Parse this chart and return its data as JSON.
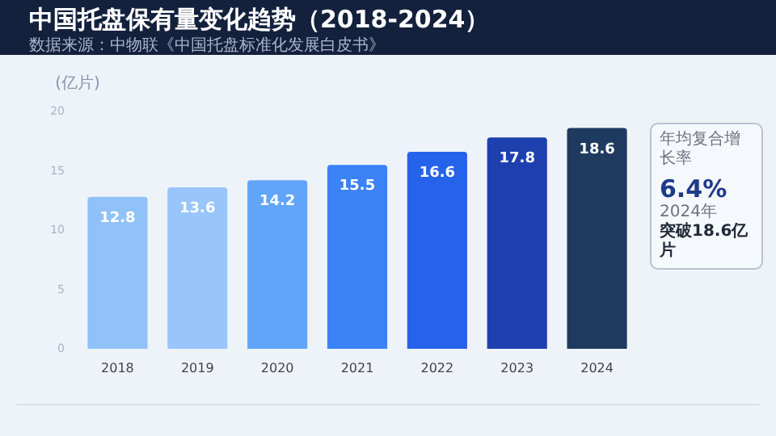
{
  "chart_data": {
    "type": "bar",
    "title": "中国托盘保有量变化趋势（2018-2024）",
    "subtitle": "数据来源：中物联《中国托盘标准化发展白皮书》",
    "ylabel": "(亿片)",
    "categories": [
      "2018",
      "2019",
      "2020",
      "2021",
      "2022",
      "2023",
      "2024"
    ],
    "values": [
      12.8,
      13.6,
      14.2,
      15.5,
      16.6,
      17.8,
      18.6
    ],
    "colors": [
      "#90c2f9",
      "#98c6fb",
      "#60a5fa",
      "#3b82f6",
      "#2563eb",
      "#1e40af",
      "#1e3a5f"
    ],
    "ylim": [
      0,
      20
    ],
    "yticks": [
      0,
      5,
      10,
      15,
      20
    ],
    "grid": false,
    "data_labels": true,
    "annotations": [
      "年均复合增长率",
      "6.4%",
      "2024年",
      "突破18.6亿片"
    ]
  }
}
